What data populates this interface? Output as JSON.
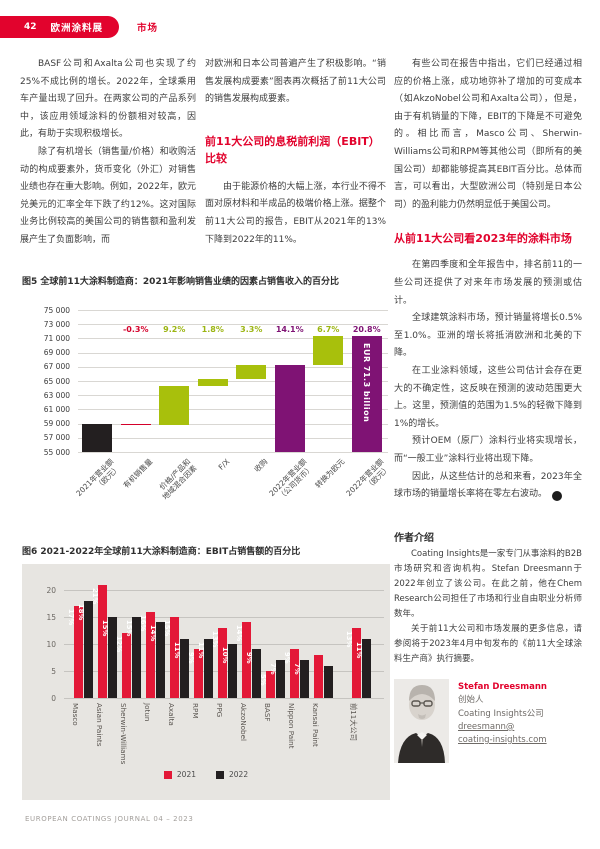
{
  "page": {
    "number": "42",
    "section": "欧洲涂料展",
    "category": "市场",
    "footer": "EUROPEAN COATINGS JOURNAL 04 – 2023",
    "accent_color": "#e2032d"
  },
  "article": {
    "col1_p1": "BASF公司和Axalta公司也实现了约25%不成比例的增长。2022年，全球乘用车产量出现了回升。在两家公司的产品系列中，该应用领域涂料的份额相对较高，因此，有助于实现积极增长。",
    "col1_p2": "除了有机增长（销售量/价格）和收购活动的构成要素外，货币变化（外汇）对销售业绩也存在重大影响。例如，2022年，欧元兑美元的汇率全年下跌了约12%。这对国际业务比例较高的美国公司的销售额和盈利发展产生了负面影响，而",
    "col2_p1": "对欧洲和日本公司普遍产生了积极影响。“销售发展构成要素”图表再次概括了前11大公司的销售发展构成要素。",
    "col2_h1": "前11大公司的息税前利润（EBIT）比较",
    "col2_p2": "由于能源价格的大幅上涨，本行业不得不面对原材料和半成品的极端价格上涨。据整个前11大公司的报告，EBIT从2021年的13%下降到2022年的11%。",
    "col3_p1": "有些公司在报告中指出，它们已经通过相应的价格上涨，成功地弥补了增加的可变成本（如AkzoNobel公司和Axalta公司），但是，由于有机销量的下降，EBIT的下降是不可避免的。相比而言，Masco公司、Sherwin-Williams公司和RPM等其他公司（即所有的美国公司）却都能够提高其EBIT百分比。总体而言，可以看出，大型欧洲公司（特别是日本公司）的盈利能力仍然明显低于美国公司。",
    "col3_h1": "从前11大公司看2023年的涂料市场",
    "col3_p2": "在第四季度和全年报告中，排名前11的一些公司还提供了对来年市场发展的预测或估计。",
    "col3_p3": "全球建筑涂料市场，预计销量将增长0.5%至1.0%。亚洲的增长将抵消欧洲和北美的下降。",
    "col3_p4": "在工业涂料领域，这些公司估计会存在更大的不确定性，这反映在预测的波动范围更大上。这里，预测值的范围为1.5%的轻微下降到1%的增长。",
    "col3_p5": "预计OEM（原厂）涂料行业将实现增长，而“一般工业”涂料行业将出现下降。",
    "col3_p6": "因此，从这些估计的总和来看，2023年全球市场的销量增长率将在零左右波动。",
    "endmark_glyph": "❮"
  },
  "author": {
    "section_title": "作者介绍",
    "p1": "Coating Insights是一家专门从事涂料的B2B市场研究和咨询机构。Stefan Dreesmann于2022年创立了该公司。在此之前，他在Chem Research公司担任了市场和行业自由职业分析师数年。",
    "p2": "关于前11大公司和市场发展的更多信息，请参阅将于2023年4月中旬发布的《前11大全球涂料生产商》执行摘要。",
    "name": "Stefan Dreesmann",
    "title": "创始人",
    "company": "Coating Insights公司",
    "email_line1": "dreesmann@",
    "email_line2": "coating-insights.com"
  },
  "chart_data": [
    {
      "type": "bar",
      "subtype": "waterfall",
      "title": "图5 全球前11大涂料制造商：2021年影响销售业绩的因素占销售收入的百分比",
      "ylim": [
        55000,
        75000
      ],
      "ytick_step": 2000,
      "grid": true,
      "colors": {
        "dark": "#231f20",
        "red": "#d4002a",
        "green": "#a8c00c",
        "purple": "#7f1374"
      },
      "pct_colors": {
        "red": "#d4002a",
        "green": "#9cb512",
        "purple": "#7f1374"
      },
      "steps": [
        {
          "label": "2021年营业额\n（欧元）",
          "pct": "",
          "color": "dark",
          "y0": 55000,
          "y1": 59000
        },
        {
          "label": "有机销售量",
          "pct": "-0.3%",
          "color": "red",
          "y0": 58820,
          "y1": 59000
        },
        {
          "label": "价格/产品和\n地域混合因素",
          "pct": "9.2%",
          "color": "green",
          "y0": 58820,
          "y1": 64250
        },
        {
          "label": "F/X",
          "pct": "1.8%",
          "color": "green",
          "y0": 64250,
          "y1": 65310
        },
        {
          "label": "收购",
          "pct": "3.3%",
          "color": "green",
          "y0": 65310,
          "y1": 67260
        },
        {
          "label": "2022年营业额\n（公司货币）",
          "pct": "14.1%",
          "color": "purple",
          "y0": 55000,
          "y1": 67260
        },
        {
          "label": "转换为欧元",
          "pct": "6.7%",
          "color": "green",
          "y0": 67260,
          "y1": 71300
        },
        {
          "label": "2022年营业额\n（欧元）",
          "pct": "20.8%",
          "color": "purple",
          "y0": 55000,
          "y1": 71300,
          "bar_text": "EUR 71.3 billion"
        }
      ]
    },
    {
      "type": "bar",
      "title": "图6 2021-2022年全球前11大涂料制造商：EBIT占销售额的百分比",
      "categories": [
        "Masco",
        "Asian Paints",
        "Sherwin-Williams",
        "Jotun",
        "Axalta",
        "RPM",
        "PPG",
        "AkzoNobel",
        "BASF",
        "Nippon Paint",
        "Kansai Paint",
        "前11大公司"
      ],
      "series": [
        {
          "name": "2021",
          "color": "#e31837",
          "values": [
            17,
            21,
            12,
            16,
            15,
            9,
            13,
            14,
            5,
            9,
            8,
            13
          ],
          "labels": [
            "17%",
            "21%",
            "12%",
            "16%",
            "15%",
            "9%",
            "13%",
            "14%",
            "5%",
            "9%",
            "",
            "13%"
          ]
        },
        {
          "name": "2022",
          "color": "#231f20",
          "values": [
            18,
            15,
            15,
            14,
            11,
            11,
            10,
            9,
            7,
            7,
            6,
            11
          ],
          "labels": [
            "18%",
            "15%",
            "15%",
            "14%",
            "11%",
            "11%",
            "10%",
            "9%",
            "7%",
            "7%",
            "",
            "11%"
          ]
        }
      ],
      "ylim": [
        0,
        20
      ],
      "yticks": [
        0,
        5,
        10,
        15,
        20
      ],
      "grid": true,
      "legend": [
        "2021",
        "2022"
      ],
      "legend_position": "bottom-center",
      "panel_color": "#e7e5e1"
    }
  ]
}
